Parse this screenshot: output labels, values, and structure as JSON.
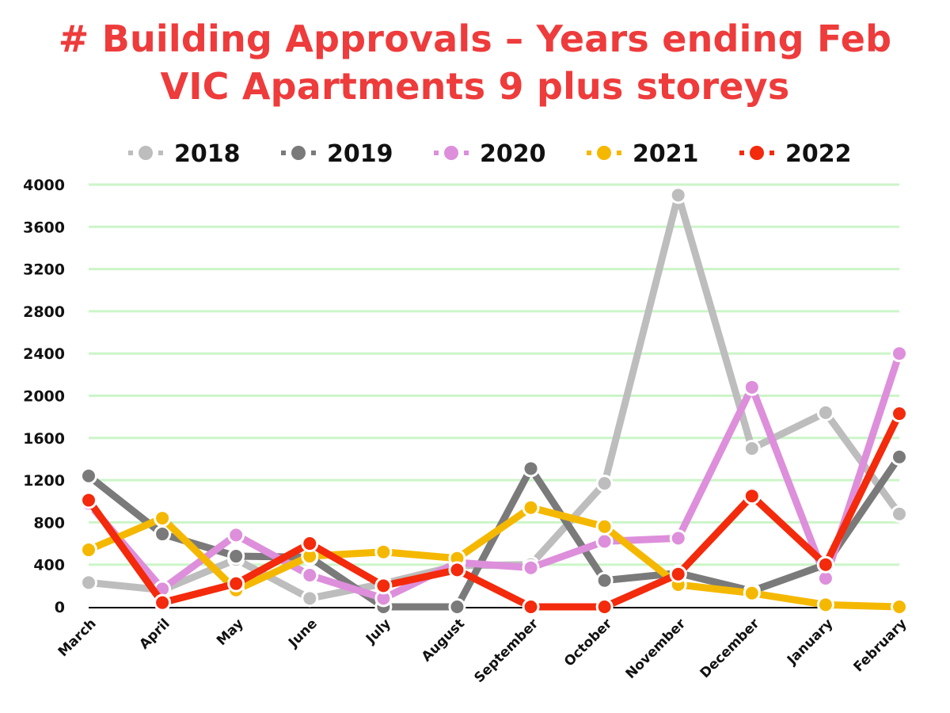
{
  "title": {
    "line1": "# Building Approvals – Years ending Feb",
    "line2": "VIC Apartments 9 plus storeys"
  },
  "chart_data": {
    "type": "line",
    "title": "# Building Approvals – Years ending Feb VIC Apartments 9 plus storeys",
    "xlabel": "",
    "ylabel": "",
    "categories": [
      "March",
      "April",
      "May",
      "June",
      "July",
      "August",
      "September",
      "October",
      "November",
      "December",
      "January",
      "February"
    ],
    "ylim": [
      0,
      4000
    ],
    "yticks": [
      0,
      400,
      800,
      1200,
      1600,
      2000,
      2400,
      2800,
      3200,
      3600,
      4000
    ],
    "grid": true,
    "grid_color": "#ccf5c8",
    "legend_position": "top",
    "series": [
      {
        "name": "2018",
        "color": "#bdbdbd",
        "values": [
          230,
          160,
          450,
          80,
          220,
          390,
          400,
          1170,
          3900,
          1500,
          1840,
          880
        ]
      },
      {
        "name": "2019",
        "color": "#7a7a7a",
        "values": [
          1240,
          690,
          480,
          470,
          0,
          0,
          1310,
          250,
          320,
          150,
          400,
          1420
        ]
      },
      {
        "name": "2020",
        "color": "#dd8fdb",
        "values": [
          980,
          170,
          680,
          300,
          80,
          420,
          370,
          620,
          650,
          2080,
          270,
          2400
        ]
      },
      {
        "name": "2021",
        "color": "#f5b800",
        "values": [
          540,
          840,
          160,
          480,
          520,
          460,
          940,
          760,
          210,
          130,
          20,
          0
        ]
      },
      {
        "name": "2022",
        "color": "#f32a0c",
        "values": [
          1010,
          40,
          220,
          600,
          200,
          350,
          0,
          0,
          310,
          1050,
          400,
          1830
        ]
      }
    ]
  }
}
